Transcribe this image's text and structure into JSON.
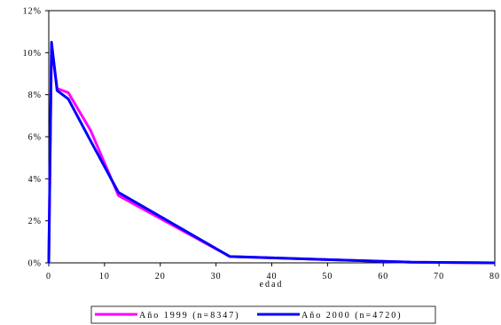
{
  "chart_data": {
    "type": "line",
    "xlabel": "edad",
    "ylabel": "",
    "xlim": [
      0,
      80
    ],
    "ylim": [
      0,
      0.12
    ],
    "x_ticks": [
      0,
      10,
      20,
      30,
      40,
      50,
      60,
      70,
      80
    ],
    "y_ticks": [
      0,
      0.02,
      0.04,
      0.06,
      0.08,
      0.1,
      0.12
    ],
    "x_tick_labels": [
      "0",
      "10",
      "20",
      "30",
      "40",
      "50",
      "60",
      "70",
      "80"
    ],
    "y_tick_labels": [
      "0%",
      "2%",
      "4%",
      "6%",
      "8%",
      "10%",
      "12%"
    ],
    "grid": false,
    "legend_position": "bottom",
    "series": [
      {
        "name": "Año 1999 (n=8347)",
        "color": "#ff00ff",
        "x": [
          0,
          0.5,
          1.5,
          3.5,
          7.5,
          12.5,
          32.5,
          50,
          65,
          80
        ],
        "y": [
          0.0,
          0.1035,
          0.083,
          0.081,
          0.063,
          0.032,
          0.003,
          0.0015,
          0.0003,
          0.0
        ]
      },
      {
        "name": "Año 2000 (n=4720)",
        "color": "#0000ff",
        "x": [
          0,
          0.5,
          1.5,
          3.5,
          7.5,
          12.5,
          32.5,
          50,
          65,
          80
        ],
        "y": [
          0.0,
          0.105,
          0.082,
          0.078,
          0.058,
          0.0335,
          0.003,
          0.0015,
          0.0003,
          0.0
        ]
      }
    ]
  }
}
